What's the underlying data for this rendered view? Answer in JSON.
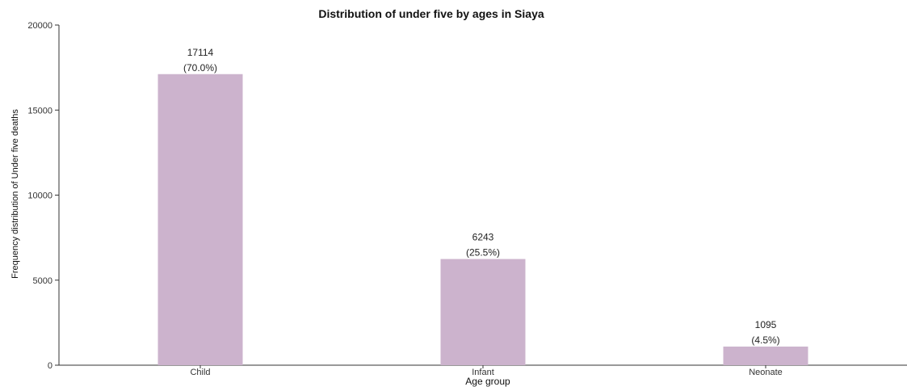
{
  "chart_data": {
    "type": "bar",
    "title": "Distribution of under five by ages in Siaya",
    "xlabel": "Age group",
    "ylabel": "Frequency distribution of Under five deaths",
    "categories": [
      "Child",
      "Infant",
      "Neonate"
    ],
    "values": [
      17114,
      6243,
      1095
    ],
    "value_labels": [
      "17114",
      "6243",
      "1095"
    ],
    "percent_labels": [
      "(70.0%)",
      "(25.5%)",
      "(4.5%)"
    ],
    "ylim": [
      0,
      20000
    ],
    "yticks": [
      0,
      5000,
      10000,
      15000,
      20000
    ],
    "ytick_labels": [
      "0",
      "5000",
      "10000",
      "15000",
      "20000"
    ],
    "bar_color": "#ccb3cd",
    "grid": false,
    "legend": "none"
  }
}
